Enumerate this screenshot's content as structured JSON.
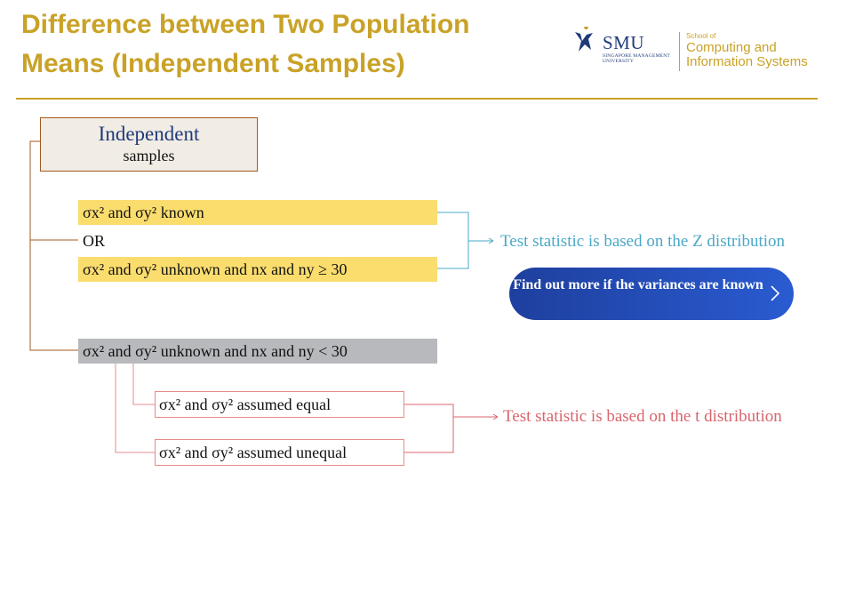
{
  "header": {
    "title": "Difference between Two Population Means (Independent Samples)"
  },
  "logo": {
    "university": "SMU",
    "university_full": "SINGAPORE MANAGEMENT UNIVERSITY",
    "school_small": "School of",
    "school_line1": "Computing and",
    "school_line2": "Information Systems"
  },
  "diagram": {
    "root": {
      "line1": "Independent",
      "line2": "samples"
    },
    "known_label": "σx² and σy² known",
    "or_label": "OR",
    "unknown_large_label": "σx² and σy² unknown and nx and ny ≥ 30",
    "unknown_small_label": "σx² and σy² unknown and nx and ny < 30",
    "equal_label": "σx² and σy² assumed equal",
    "unequal_label": "σx² and σy² assumed unequal",
    "z_result": "Test statistic is based on the Z distribution",
    "t_result": "Test statistic is based on the t distribution"
  },
  "cta_button": {
    "label": "Find out more if the variances are known"
  },
  "colors": {
    "title": "#c9a227",
    "yellow_fill": "#fbdd6e",
    "gray_fill": "#b7b9bc",
    "z_line": "#4aa8c8",
    "t_line": "#d9656d",
    "button": "#1e3f9e"
  }
}
